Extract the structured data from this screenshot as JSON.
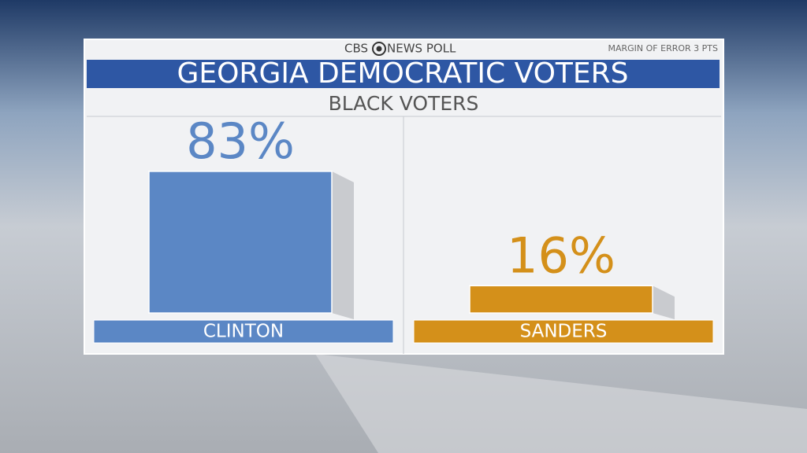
{
  "chart_data": {
    "type": "bar",
    "brand": "CBS",
    "header": "NEWS POLL",
    "note": "MARGIN OF ERROR 3 PTS",
    "title": "GEORGIA DEMOCRATIC VOTERS",
    "subtitle": "BLACK VOTERS",
    "categories": [
      "CLINTON",
      "SANDERS"
    ],
    "values": [
      83,
      16
    ],
    "value_labels": [
      "83%",
      "16%"
    ],
    "colors": [
      "#5b87c5",
      "#d4901a"
    ]
  }
}
